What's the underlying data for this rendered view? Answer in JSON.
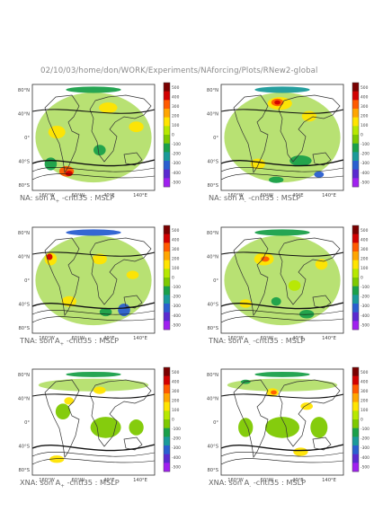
{
  "header": {
    "path": "02/10/03/home/don/WORK/Experiments/NAforcing/Plots/RNew2-global"
  },
  "colorbar": {
    "ticks": [
      "500",
      "400",
      "300",
      "200",
      "100",
      "0",
      "-100",
      "-200",
      "-300",
      "-400",
      "-500"
    ],
    "colors": [
      "#7a0000",
      "#d20000",
      "#ff5a00",
      "#ffa500",
      "#ffe400",
      "#b7e800",
      "#7ec900",
      "#1aa04a",
      "#1a9a9a",
      "#2a5fd0",
      "#5a2ad0",
      "#a020f0"
    ]
  },
  "axes": {
    "lat_labels": [
      "80°N",
      "40°N",
      "0°",
      "40°S",
      "80°S"
    ],
    "lon_labels": [
      "160°W",
      "60°W",
      "40°E",
      "140°E"
    ]
  },
  "panels": [
    {
      "prefix": "NA: son A",
      "sub": "+",
      "suffix": " -cntl35 : MSLP",
      "variant": 0
    },
    {
      "prefix": "NA: son A",
      "sub": "-",
      "suffix": " -cntl35 : MSLP",
      "variant": 1
    },
    {
      "prefix": "TNA: son A",
      "sub": "+",
      "suffix": " -cntl35 : MSLP",
      "variant": 2
    },
    {
      "prefix": "TNA: son A",
      "sub": "-",
      "suffix": " -cntl35 : MSLP",
      "variant": 3
    },
    {
      "prefix": "XNA: son A",
      "sub": "+",
      "suffix": " -cntl35 : MSLP",
      "variant": 4
    },
    {
      "prefix": "XNA: son A",
      "sub": "-",
      "suffix": " -cntl35 : MSLP",
      "variant": 5
    }
  ]
}
